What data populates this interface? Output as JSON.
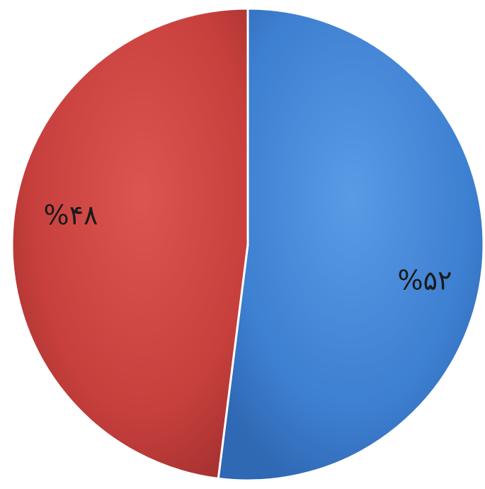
{
  "chart_data": {
    "type": "pie",
    "slices": [
      {
        "label": "%۵۲",
        "value": 52,
        "color": "#3d7fd0"
      },
      {
        "label": "%۴۸",
        "value": 48,
        "color": "#c8403d"
      }
    ],
    "title": "",
    "legend": "none"
  }
}
